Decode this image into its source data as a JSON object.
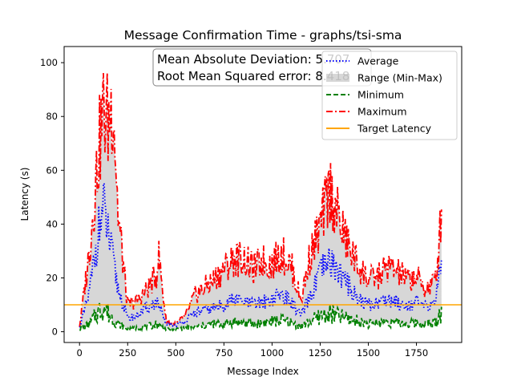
{
  "chart_data": {
    "type": "line",
    "title": "Message Confirmation Time - graphs/tsi-sma",
    "xlabel": "Message Index",
    "ylabel": "Latency (s)",
    "xlim": [
      -80,
      1985
    ],
    "ylim": [
      -4,
      106
    ],
    "x_ticks": [
      0,
      250,
      500,
      750,
      1000,
      1250,
      1500,
      1750
    ],
    "y_ticks": [
      0,
      20,
      40,
      60,
      80,
      100
    ],
    "grid": false,
    "legend_position": "top-right",
    "annotation": {
      "lines": [
        "Mean Absolute Deviation: 5.707",
        "Root Mean Squared error: 8.418"
      ]
    },
    "legend": [
      {
        "label": "Average",
        "color": "#0000ff",
        "style": "dotted"
      },
      {
        "label": "Range (Min-Max)",
        "color": "#b0b0b0",
        "style": "fill"
      },
      {
        "label": "Minimum",
        "color": "#008000",
        "style": "dashed"
      },
      {
        "label": "Maximum",
        "color": "#ff0000",
        "style": "dashdot"
      },
      {
        "label": "Target Latency",
        "color": "#ffa500",
        "style": "solid"
      }
    ],
    "target_latency": 10,
    "series": [
      {
        "name": "Average",
        "color": "#0000ff",
        "x": [
          0,
          50,
          100,
          125,
          150,
          200,
          250,
          300,
          350,
          400,
          450,
          500,
          550,
          600,
          650,
          700,
          750,
          800,
          850,
          900,
          950,
          1000,
          1050,
          1100,
          1150,
          1200,
          1250,
          1300,
          1350,
          1400,
          1450,
          1500,
          1550,
          1600,
          1650,
          1700,
          1750,
          1800,
          1850,
          1880
        ],
        "values": [
          1.5,
          14,
          38,
          46,
          36,
          16,
          5,
          6,
          9,
          11,
          3,
          2.5,
          4,
          7,
          8,
          9,
          10,
          12,
          11,
          10,
          11,
          12,
          14,
          11,
          6,
          13,
          22,
          26,
          22,
          17,
          12,
          10,
          11,
          12,
          11,
          10,
          11,
          9,
          12,
          26
        ]
      },
      {
        "name": "Minimum",
        "color": "#008000",
        "x": [
          0,
          50,
          100,
          125,
          150,
          200,
          250,
          300,
          350,
          400,
          450,
          500,
          550,
          600,
          650,
          700,
          750,
          800,
          850,
          900,
          950,
          1000,
          1050,
          1100,
          1150,
          1200,
          1250,
          1300,
          1350,
          1400,
          1450,
          1500,
          1550,
          1600,
          1650,
          1700,
          1750,
          1800,
          1850,
          1880
        ],
        "values": [
          1,
          3,
          8,
          10,
          7,
          3,
          1,
          1.5,
          2,
          3,
          1,
          1,
          1.5,
          2,
          2.5,
          3,
          3,
          4,
          3.5,
          3,
          3.5,
          4,
          4.5,
          3.5,
          2,
          4,
          6,
          7,
          6,
          5,
          4,
          3,
          3.5,
          4,
          3.5,
          3,
          3.5,
          3,
          3.5,
          8
        ]
      },
      {
        "name": "Maximum",
        "color": "#ff0000",
        "x": [
          0,
          50,
          100,
          125,
          150,
          175,
          200,
          250,
          300,
          350,
          400,
          410,
          450,
          500,
          550,
          600,
          650,
          700,
          750,
          800,
          850,
          900,
          950,
          1000,
          1050,
          1100,
          1150,
          1200,
          1250,
          1300,
          1350,
          1400,
          1450,
          1500,
          1550,
          1600,
          1650,
          1700,
          1750,
          1800,
          1850,
          1870,
          1880
        ],
        "values": [
          2,
          30,
          70,
          85,
          80,
          90,
          45,
          10,
          12,
          16,
          22,
          30,
          4,
          3,
          6,
          14,
          17,
          20,
          24,
          28,
          28,
          24,
          27,
          26,
          30,
          25,
          12,
          30,
          40,
          55,
          42,
          32,
          25,
          20,
          21,
          25,
          23,
          20,
          21,
          16,
          20,
          35,
          50
        ]
      }
    ]
  }
}
